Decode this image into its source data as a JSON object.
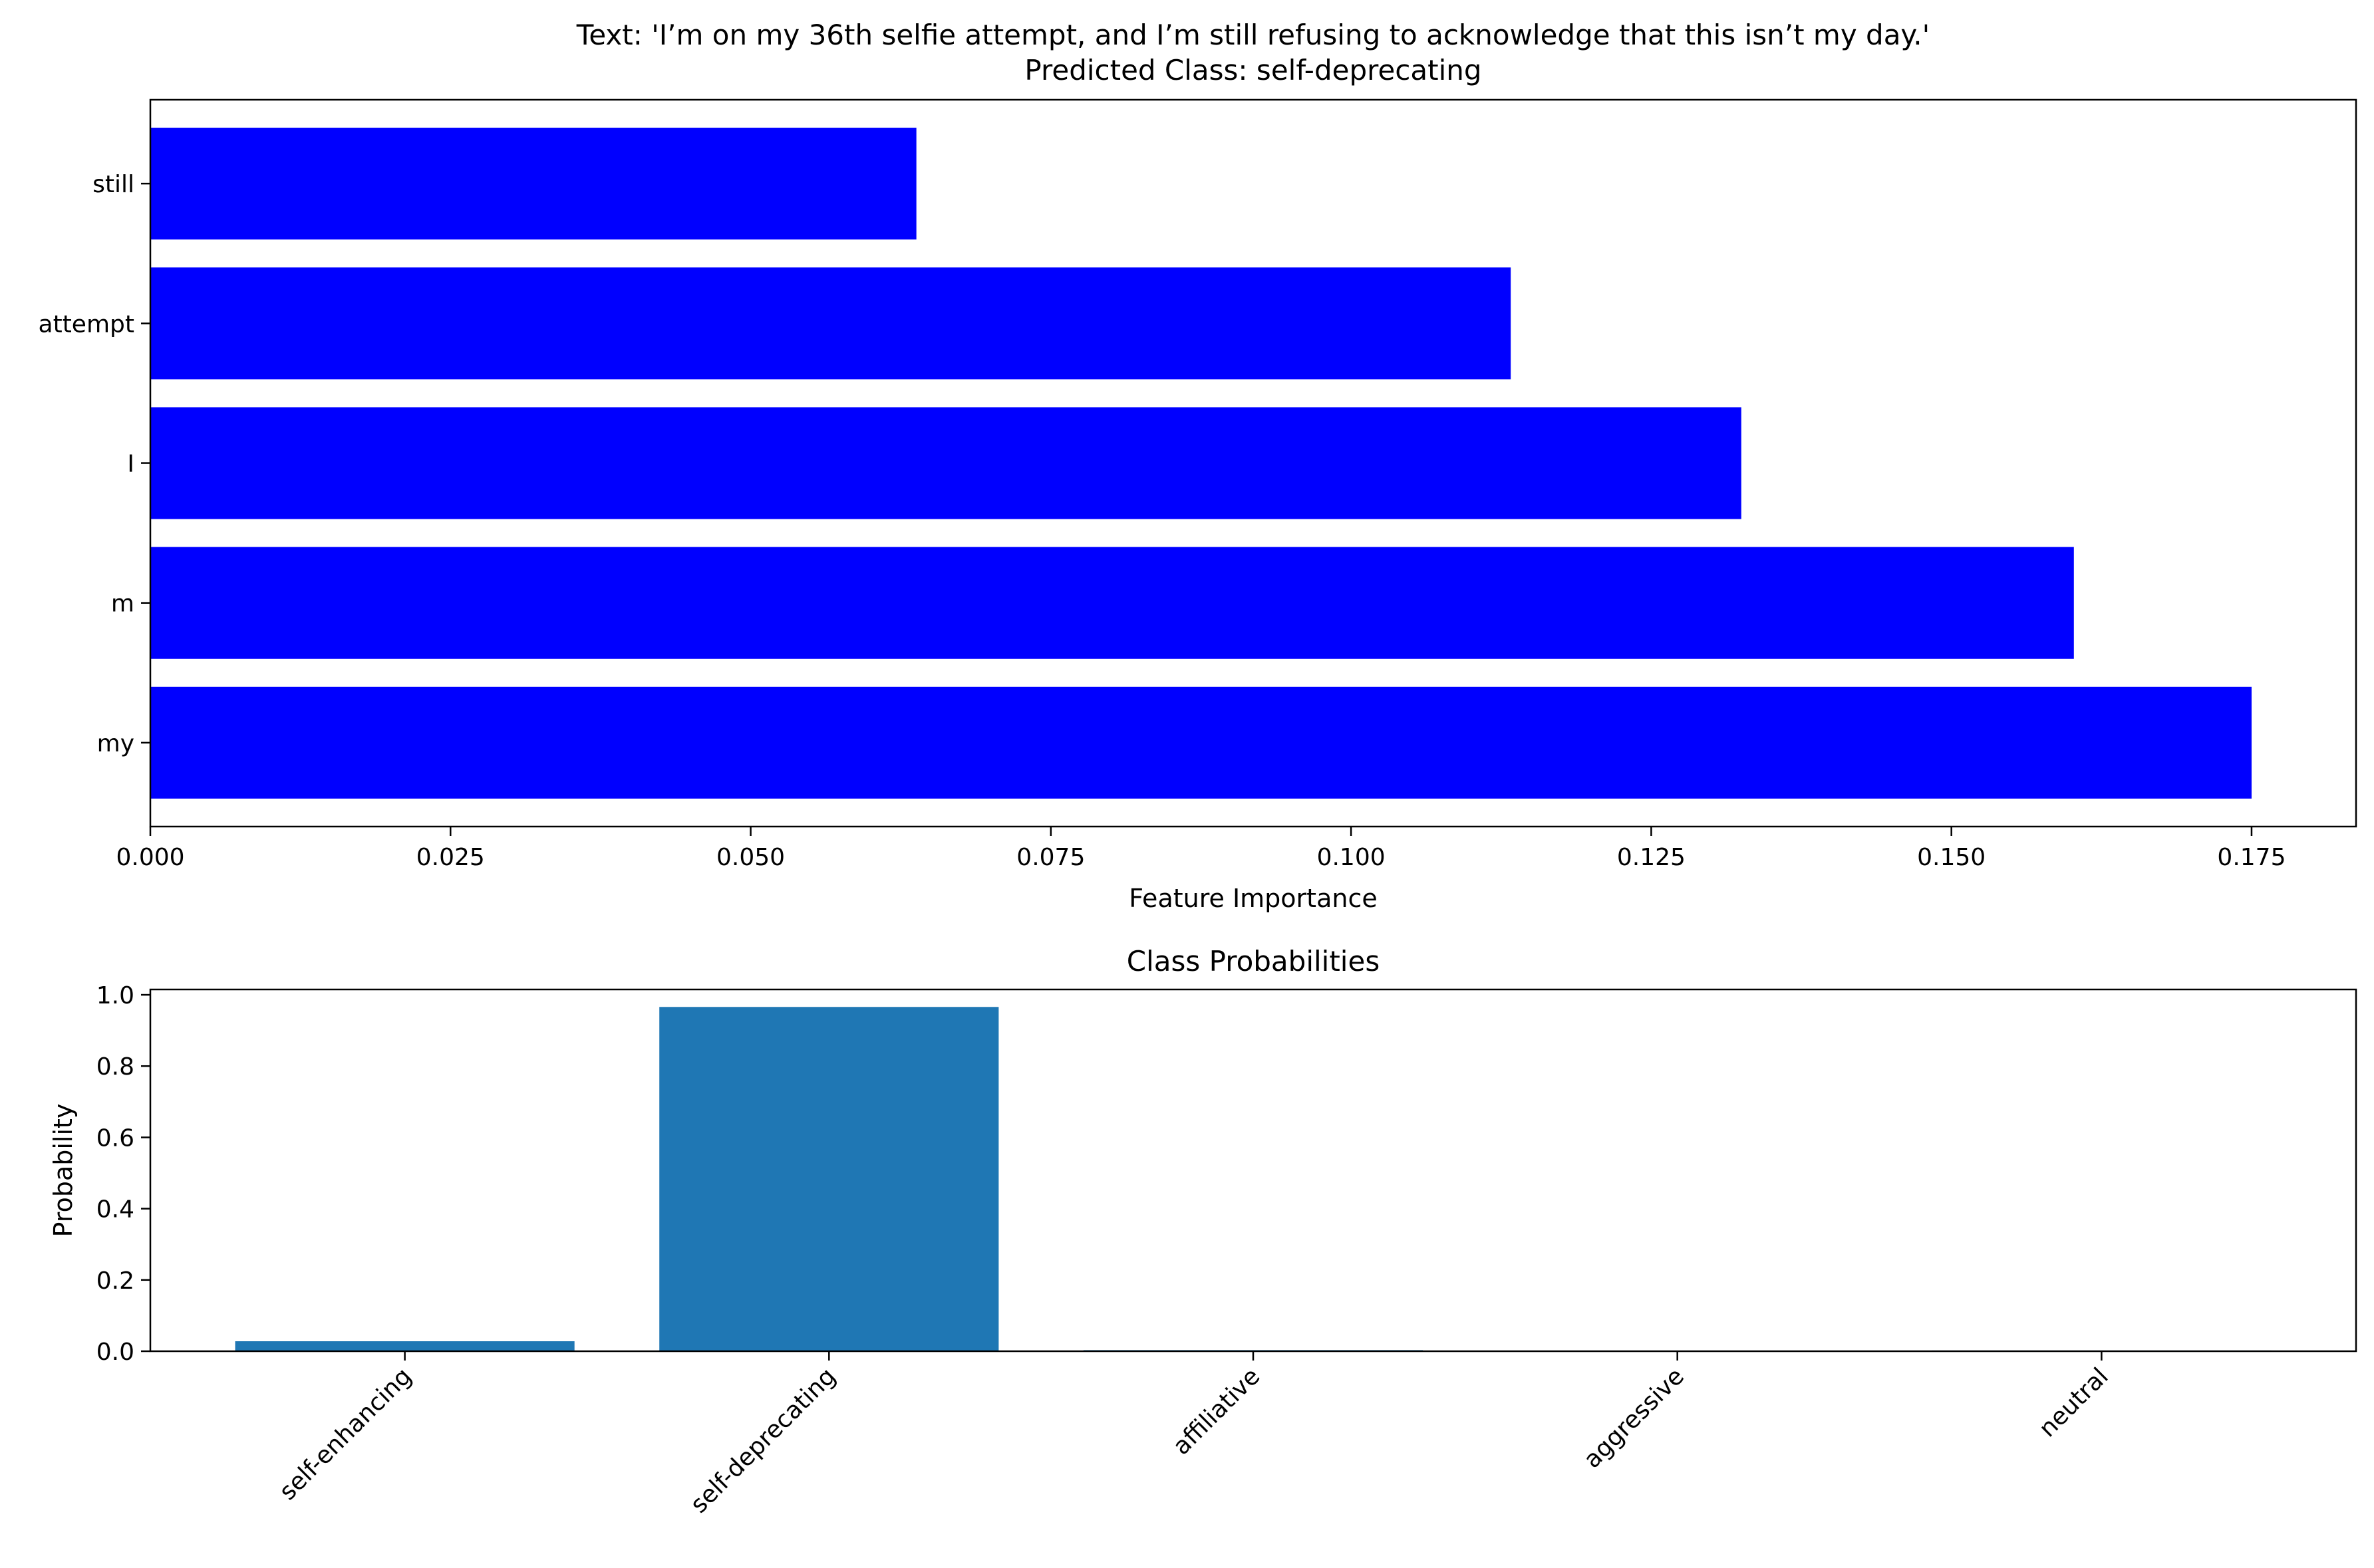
{
  "figure": {
    "background": "#ffffff"
  },
  "chart_data": [
    {
      "type": "bar",
      "orientation": "horizontal",
      "title_line1": "Text: 'I’m on my 36th selfie attempt, and I’m still refusing to acknowledge that this isn’t my day.'",
      "title_line2": "Predicted Class: self-deprecating",
      "xlabel": "Feature Importance",
      "ylabel": "",
      "categories": [
        "my",
        "m",
        "I",
        "attempt",
        "still"
      ],
      "values": [
        0.175,
        0.1602,
        0.1325,
        0.1133,
        0.0638
      ],
      "xlim": [
        0,
        0.1837
      ],
      "xticks": [
        0.0,
        0.025,
        0.05,
        0.075,
        0.1,
        0.125,
        0.15,
        0.175
      ],
      "xtick_labels": [
        "0.000",
        "0.025",
        "0.050",
        "0.075",
        "0.100",
        "0.125",
        "0.150",
        "0.175"
      ],
      "bar_color": "#0000ff",
      "grid": false,
      "legend": "none"
    },
    {
      "type": "bar",
      "orientation": "vertical",
      "title": "Class Probabilities",
      "xlabel": "",
      "ylabel": "Probability",
      "categories": [
        "self-enhancing",
        "self-deprecating",
        "affiliative",
        "aggressive",
        "neutral"
      ],
      "values": [
        0.028,
        0.966,
        0.003,
        0.001,
        0.002
      ],
      "ylim": [
        0,
        1.015
      ],
      "yticks": [
        0.0,
        0.2,
        0.4,
        0.6,
        0.8,
        1.0
      ],
      "ytick_labels": [
        "0.0",
        "0.2",
        "0.4",
        "0.6",
        "0.8",
        "1.0"
      ],
      "xtick_rotation": 45,
      "bar_color": "#1f77b4",
      "grid": false,
      "legend": "none"
    }
  ]
}
